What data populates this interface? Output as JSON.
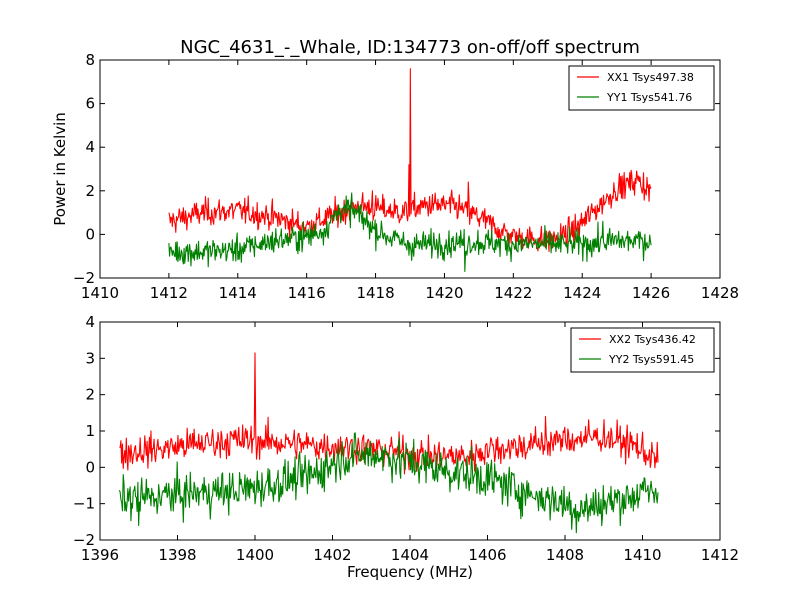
{
  "figure": {
    "title": "NGC_4631_-_Whale, ID:134773 on-off/off spectrum"
  },
  "chart_data": [
    {
      "type": "line",
      "title": "NGC_4631_-_Whale, ID:134773 on-off/off spectrum",
      "xlabel": "",
      "ylabel": "Power in Kelvin",
      "xlim": [
        1410,
        1428
      ],
      "ylim": [
        -2,
        8
      ],
      "xticks": [
        1410,
        1412,
        1414,
        1416,
        1418,
        1420,
        1422,
        1424,
        1426,
        1428
      ],
      "yticks": [
        -2,
        0,
        2,
        4,
        6,
        8
      ],
      "grid": false,
      "legend_position": "top-right",
      "series": [
        {
          "name": "XX1 Tsys497.38",
          "color": "#ff0000",
          "x_range": [
            1412,
            1426
          ],
          "trend": [
            [
              1412,
              0.6
            ],
            [
              1413,
              1.0
            ],
            [
              1414,
              1.1
            ],
            [
              1415,
              0.8
            ],
            [
              1416,
              0.35
            ],
            [
              1416.8,
              0.9
            ],
            [
              1417.5,
              1.3
            ],
            [
              1418,
              1.2
            ],
            [
              1418.8,
              1.0
            ],
            [
              1419.5,
              1.35
            ],
            [
              1420.3,
              1.3
            ],
            [
              1421,
              0.8
            ],
            [
              1421.6,
              0.2
            ],
            [
              1422,
              -0.1
            ],
            [
              1423,
              -0.3
            ],
            [
              1423.7,
              0.1
            ],
            [
              1424.3,
              1.0
            ],
            [
              1425,
              2.1
            ],
            [
              1425.6,
              2.5
            ],
            [
              1426,
              2.0
            ]
          ],
          "noise": 0.3,
          "spikes": [
            {
              "x": 1419.0,
              "y": 7.6
            },
            {
              "x": 1418.97,
              "y": 3.2
            },
            {
              "x": 1420.7,
              "y": 2.4
            },
            {
              "x": 1417.9,
              "y": 2.0
            }
          ]
        },
        {
          "name": "YY1 Tsys541.76",
          "color": "#008000",
          "x_range": [
            1412,
            1426
          ],
          "trend": [
            [
              1412,
              -0.8
            ],
            [
              1413,
              -0.8
            ],
            [
              1414,
              -0.7
            ],
            [
              1415,
              -0.3
            ],
            [
              1416,
              -0.1
            ],
            [
              1416.5,
              0.2
            ],
            [
              1417,
              1.2
            ],
            [
              1417.5,
              0.9
            ],
            [
              1418,
              0.2
            ],
            [
              1418.5,
              -0.2
            ],
            [
              1419,
              -0.5
            ],
            [
              1420,
              -0.4
            ],
            [
              1421,
              -0.35
            ],
            [
              1422,
              -0.45
            ],
            [
              1423,
              -0.45
            ],
            [
              1424,
              -0.45
            ],
            [
              1425,
              -0.3
            ],
            [
              1426,
              -0.3
            ]
          ],
          "noise": 0.3,
          "spikes": [
            {
              "x": 1420.6,
              "y": -1.7
            },
            {
              "x": 1417.3,
              "y": 1.9
            },
            {
              "x": 1424.6,
              "y": 0.6
            }
          ]
        }
      ]
    },
    {
      "type": "line",
      "title": "",
      "xlabel": "Frequency (MHz)",
      "ylabel": "",
      "xlim": [
        1396,
        1412
      ],
      "ylim": [
        -2,
        4
      ],
      "xticks": [
        1396,
        1398,
        1400,
        1402,
        1404,
        1406,
        1408,
        1410,
        1412
      ],
      "yticks": [
        -2,
        -1,
        0,
        1,
        2,
        3,
        4
      ],
      "grid": false,
      "legend_position": "top-right",
      "series": [
        {
          "name": "XX2 Tsys436.42",
          "color": "#ff0000",
          "x_range": [
            1396.5,
            1410.4
          ],
          "trend": [
            [
              1396.5,
              0.4
            ],
            [
              1397.5,
              0.5
            ],
            [
              1398.5,
              0.65
            ],
            [
              1399.5,
              0.75
            ],
            [
              1400.5,
              0.7
            ],
            [
              1401.5,
              0.6
            ],
            [
              1402.5,
              0.55
            ],
            [
              1403.5,
              0.45
            ],
            [
              1404.5,
              0.3
            ],
            [
              1405.5,
              0.3
            ],
            [
              1406,
              0.5
            ],
            [
              1407,
              0.6
            ],
            [
              1408,
              0.75
            ],
            [
              1409,
              0.85
            ],
            [
              1409.8,
              0.6
            ],
            [
              1410.4,
              0.2
            ]
          ],
          "noise": 0.22,
          "spikes": [
            {
              "x": 1400.0,
              "y": 3.15
            },
            {
              "x": 1407.5,
              "y": 1.4
            }
          ]
        },
        {
          "name": "YY2 Tsys591.45",
          "color": "#008000",
          "x_range": [
            1396.5,
            1410.4
          ],
          "trend": [
            [
              1396.5,
              -0.9
            ],
            [
              1397.5,
              -0.8
            ],
            [
              1398.5,
              -0.7
            ],
            [
              1399.5,
              -0.65
            ],
            [
              1400.5,
              -0.45
            ],
            [
              1401.5,
              -0.2
            ],
            [
              1402.3,
              0.3
            ],
            [
              1403.2,
              0.35
            ],
            [
              1404,
              0.15
            ],
            [
              1405,
              -0.1
            ],
            [
              1406,
              -0.3
            ],
            [
              1407,
              -0.7
            ],
            [
              1408,
              -1.0
            ],
            [
              1408.5,
              -1.15
            ],
            [
              1409,
              -1.0
            ],
            [
              1410,
              -0.7
            ],
            [
              1410.4,
              -0.7
            ]
          ],
          "noise": 0.28,
          "spikes": [
            {
              "x": 1408.3,
              "y": -1.8
            },
            {
              "x": 1397.0,
              "y": -1.6
            }
          ]
        }
      ]
    }
  ]
}
